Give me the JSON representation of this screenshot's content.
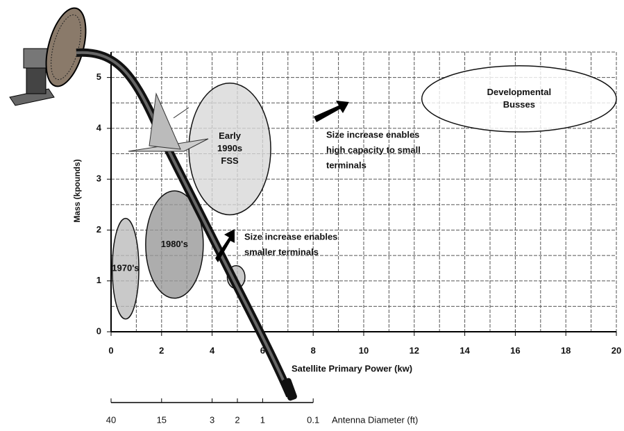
{
  "chart_data": {
    "type": "region",
    "x_label": "Satellite Primary Power (kw)",
    "y_label": "Mass (kpounds)",
    "xlim": [
      0,
      20
    ],
    "ylim": [
      0,
      5.5
    ],
    "xticks": [
      0,
      2,
      4,
      6,
      8,
      10,
      12,
      14,
      16,
      18,
      20
    ],
    "yticks": [
      0,
      1,
      2,
      3,
      4,
      5
    ],
    "x_minor_grid": [
      1,
      3,
      5,
      7,
      9,
      11,
      13,
      15,
      17,
      19
    ],
    "y_minor_grid": [
      0.5,
      1.5,
      2.5,
      3.5,
      4.5,
      5.5
    ],
    "grid": true,
    "regions": [
      {
        "label": [
          "1970's"
        ],
        "x": [
          0.05,
          1.1
        ],
        "y": [
          0.25,
          2.23
        ],
        "color": "#bbbbbb"
      },
      {
        "label": [
          "1980's"
        ],
        "x": [
          1.37,
          3.65
        ],
        "y": [
          0.66,
          2.77
        ],
        "color": "#999999"
      },
      {
        "label": [
          "Early",
          "1990s",
          "FSS"
        ],
        "x": [
          3.08,
          6.32
        ],
        "y": [
          2.3,
          4.89
        ],
        "color": "#d8d8d8"
      },
      {
        "label": [
          "Developmental",
          "Busses"
        ],
        "x": [
          12.3,
          20
        ],
        "y": [
          3.93,
          5.23
        ],
        "color": "#ffffff"
      },
      {
        "x": [
          4.6,
          5.3
        ],
        "y": [
          0.85,
          1.3
        ],
        "color": "#bbbbbb"
      }
    ],
    "annotations": [
      {
        "lines": [
          "Size increase enables",
          "high capacity to small",
          "terminals"
        ]
      },
      {
        "lines": [
          "Size increase enables",
          "smaller terminals"
        ]
      }
    ],
    "antenna_axis": {
      "label": "Antenna Diameter (ft)",
      "ticks": [
        40,
        15,
        3,
        2,
        1,
        0.1
      ],
      "at_power": [
        0,
        2,
        4,
        5,
        6,
        8
      ]
    }
  }
}
